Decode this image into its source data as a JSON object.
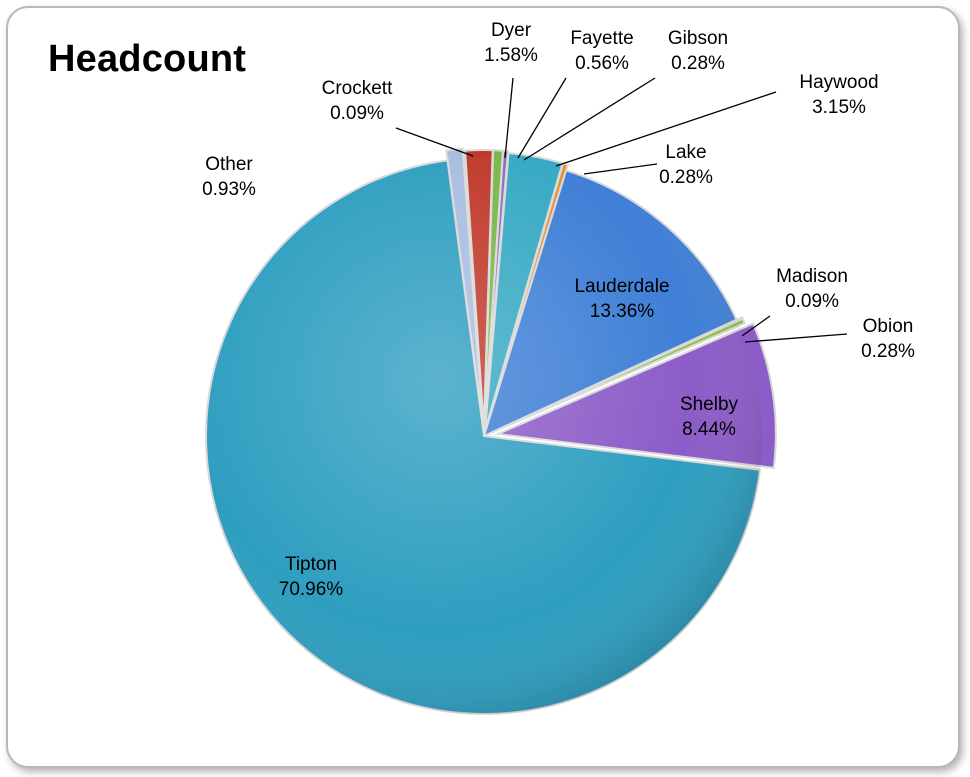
{
  "chart_data": {
    "type": "pie",
    "title": "Headcount",
    "slices": [
      {
        "name": "Crockett",
        "value": 0.09,
        "label": "0.09%",
        "color": "#7a7a8c"
      },
      {
        "name": "Dyer",
        "value": 1.58,
        "label": "1.58%",
        "color": "#c0392b"
      },
      {
        "name": "Fayette",
        "value": 0.56,
        "label": "0.56%",
        "color": "#7ab648"
      },
      {
        "name": "Gibson",
        "value": 0.28,
        "label": "0.28%",
        "color": "#8e6bbf"
      },
      {
        "name": "Haywood",
        "value": 3.15,
        "label": "3.15%",
        "color": "#36a9c4"
      },
      {
        "name": "Lake",
        "value": 0.28,
        "label": "0.28%",
        "color": "#e8902c"
      },
      {
        "name": "Lauderdale",
        "value": 13.36,
        "label": "13.36%",
        "color": "#3f7fd6"
      },
      {
        "name": "Madison",
        "value": 0.09,
        "label": "0.09%",
        "color": "#b03a3a"
      },
      {
        "name": "Obion",
        "value": 0.28,
        "label": "0.28%",
        "color": "#8dc040"
      },
      {
        "name": "Shelby",
        "value": 8.44,
        "label": "8.44%",
        "color": "#8c5cc8"
      },
      {
        "name": "Tipton",
        "value": 70.96,
        "label": "70.96%",
        "color": "#2e9ec0"
      },
      {
        "name": "Other",
        "value": 0.93,
        "label": "0.93%",
        "color": "#a8bde0"
      }
    ]
  }
}
